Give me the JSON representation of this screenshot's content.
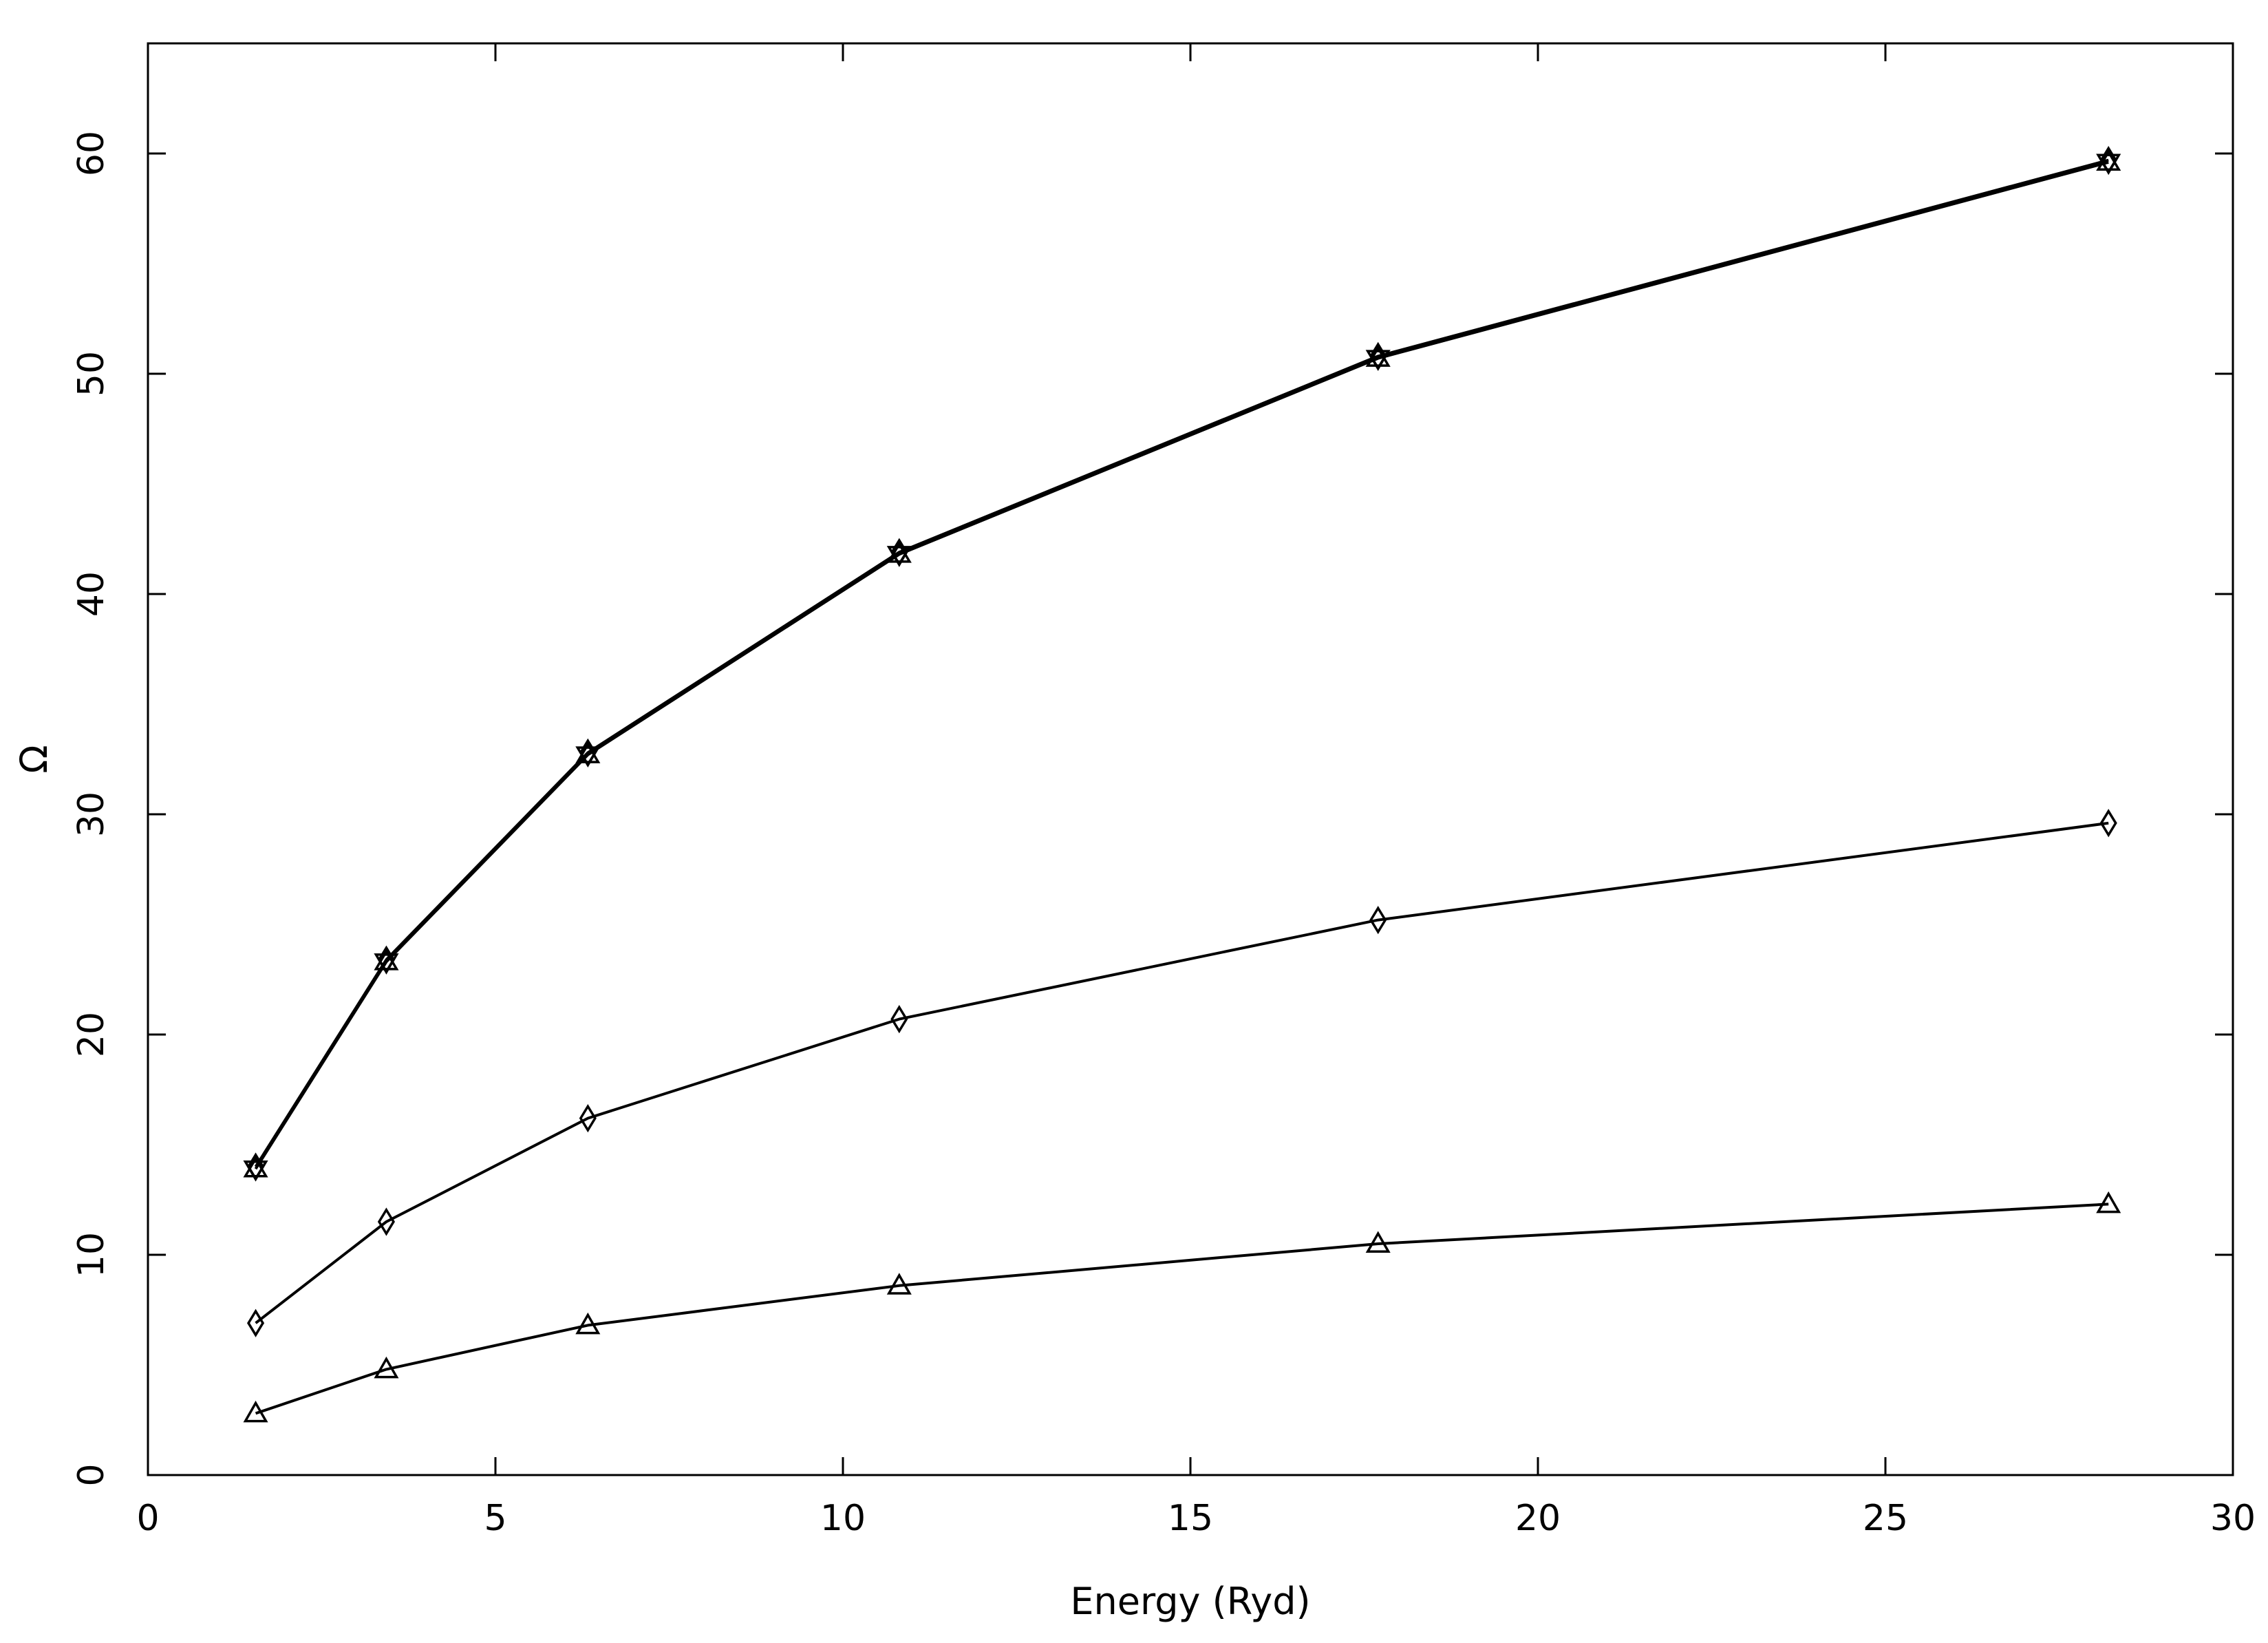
{
  "chart_data": {
    "type": "line",
    "title": "",
    "xlabel": "Energy (Ryd)",
    "ylabel": "Ω",
    "xlim": [
      0,
      30
    ],
    "ylim": [
      0,
      65
    ],
    "xticks": [
      0,
      5,
      10,
      15,
      20,
      25,
      30
    ],
    "yticks": [
      0,
      10,
      20,
      30,
      40,
      50,
      60
    ],
    "grid": false,
    "x": [
      1.55,
      3.43,
      6.33,
      10.81,
      17.7,
      28.21
    ],
    "series": [
      {
        "name": "series-star",
        "marker": "star",
        "values": [
          13.9,
          23.3,
          32.7,
          41.8,
          50.7,
          59.6
        ]
      },
      {
        "name": "series-diamond-upper",
        "marker": "diamond",
        "values": [
          14.0,
          23.4,
          32.8,
          41.9,
          50.8,
          59.7
        ]
      },
      {
        "name": "series-diamond",
        "marker": "diamond",
        "values": [
          6.9,
          11.5,
          16.2,
          20.7,
          25.2,
          29.6
        ]
      },
      {
        "name": "series-triangle",
        "marker": "triangle",
        "values": [
          2.8,
          4.8,
          6.8,
          8.6,
          10.5,
          12.3
        ]
      }
    ]
  }
}
